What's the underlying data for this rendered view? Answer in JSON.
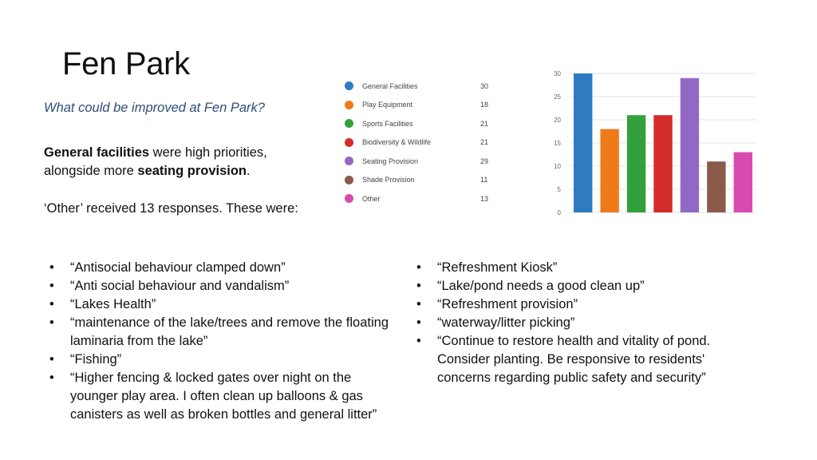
{
  "slide": {
    "title": "Fen Park",
    "question": "What could be improved at Fen Park?",
    "summary": {
      "bold1": "General facilities",
      "text1": " were high priorities, alongside more ",
      "bold2": "seating provision",
      "text2": "."
    },
    "other_note": "‘Other’ received 13 responses.  These were:"
  },
  "legend": [
    {
      "label": "General Facilities",
      "count": "30",
      "color": "#2f7bc1"
    },
    {
      "label": "Play Equipment",
      "count": "18",
      "color": "#ef7a1a"
    },
    {
      "label": "Sports Facilities",
      "count": "21",
      "color": "#34a03b"
    },
    {
      "label": "Biodiversity & Wildlife",
      "count": "21",
      "color": "#d62b2b"
    },
    {
      "label": "Seating Provision",
      "count": "29",
      "color": "#9268c6"
    },
    {
      "label": "Shade Provision",
      "count": "11",
      "color": "#8c5a4a"
    },
    {
      "label": "Other",
      "count": "13",
      "color": "#d94bb0"
    }
  ],
  "chart_data": {
    "type": "bar",
    "categories": [
      "General Facilities",
      "Play Equipment",
      "Sports Facilities",
      "Biodiversity & Wildlife",
      "Seating Provision",
      "Shade Provision",
      "Other"
    ],
    "values": [
      30,
      18,
      21,
      21,
      29,
      11,
      13
    ],
    "colors": [
      "#2f7bc1",
      "#ef7a1a",
      "#34a03b",
      "#d62b2b",
      "#9268c6",
      "#8c5a4a",
      "#d94bb0"
    ],
    "yticks": [
      "0",
      "5",
      "10",
      "15",
      "20",
      "25",
      "30"
    ],
    "ylim": [
      0,
      30
    ],
    "grid": true
  },
  "responses_left": [
    "“Antisocial behaviour clamped down”",
    "“Anti social behaviour and vandalism”",
    "“Lakes Health”",
    "“maintenance of the lake/trees and remove the floating laminaria from the lake”",
    "“Fishing”",
    "“Higher fencing & locked gates over night on the younger play area. I often clean up balloons & gas canisters as well as broken bottles and general litter”"
  ],
  "responses_right": [
    "“Refreshment Kiosk”",
    "“Lake/pond needs a good clean up”",
    "“Refreshment provision”",
    "“waterway/litter picking”",
    "“Continue to restore health and vitality of pond. Consider planting. Be responsive to residents' concerns regarding public safety and security”"
  ]
}
